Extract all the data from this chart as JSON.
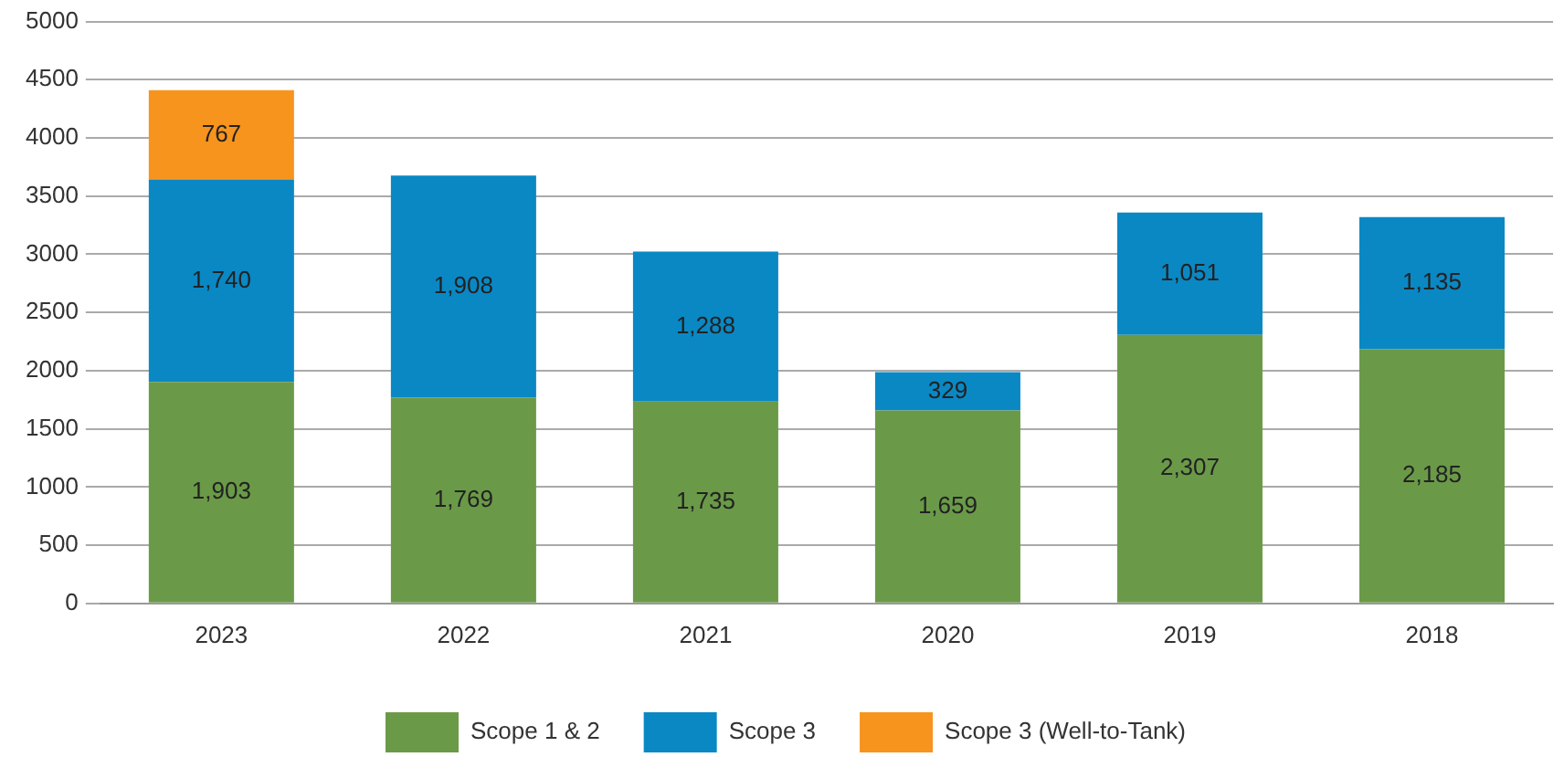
{
  "chart_data": {
    "type": "bar",
    "stacked": true,
    "categories": [
      "2023",
      "2022",
      "2021",
      "2020",
      "2019",
      "2018"
    ],
    "series": [
      {
        "name": "Scope 1 & 2",
        "color": "#6a9a48",
        "values": [
          1903,
          1769,
          1735,
          1659,
          2307,
          2185
        ],
        "value_labels": [
          "1,903",
          "1,769",
          "1,735",
          "1,659",
          "2,307",
          "2,185"
        ]
      },
      {
        "name": "Scope 3",
        "color": "#0a88c4",
        "values": [
          1740,
          1908,
          1288,
          329,
          1051,
          1135
        ],
        "value_labels": [
          "1,740",
          "1,908",
          "1,288",
          "329",
          "1,051",
          "1,135"
        ]
      },
      {
        "name": "Scope 3 (Well-to-Tank)",
        "color": "#f7941d",
        "values": [
          767,
          null,
          null,
          null,
          null,
          null
        ],
        "value_labels": [
          "767",
          null,
          null,
          null,
          null,
          null
        ]
      }
    ],
    "ylim": [
      0,
      5000
    ],
    "yticks": [
      0,
      500,
      1000,
      1500,
      2000,
      2500,
      3000,
      3500,
      4000,
      4500,
      5000
    ],
    "grid": "y",
    "legend": "bottom"
  }
}
